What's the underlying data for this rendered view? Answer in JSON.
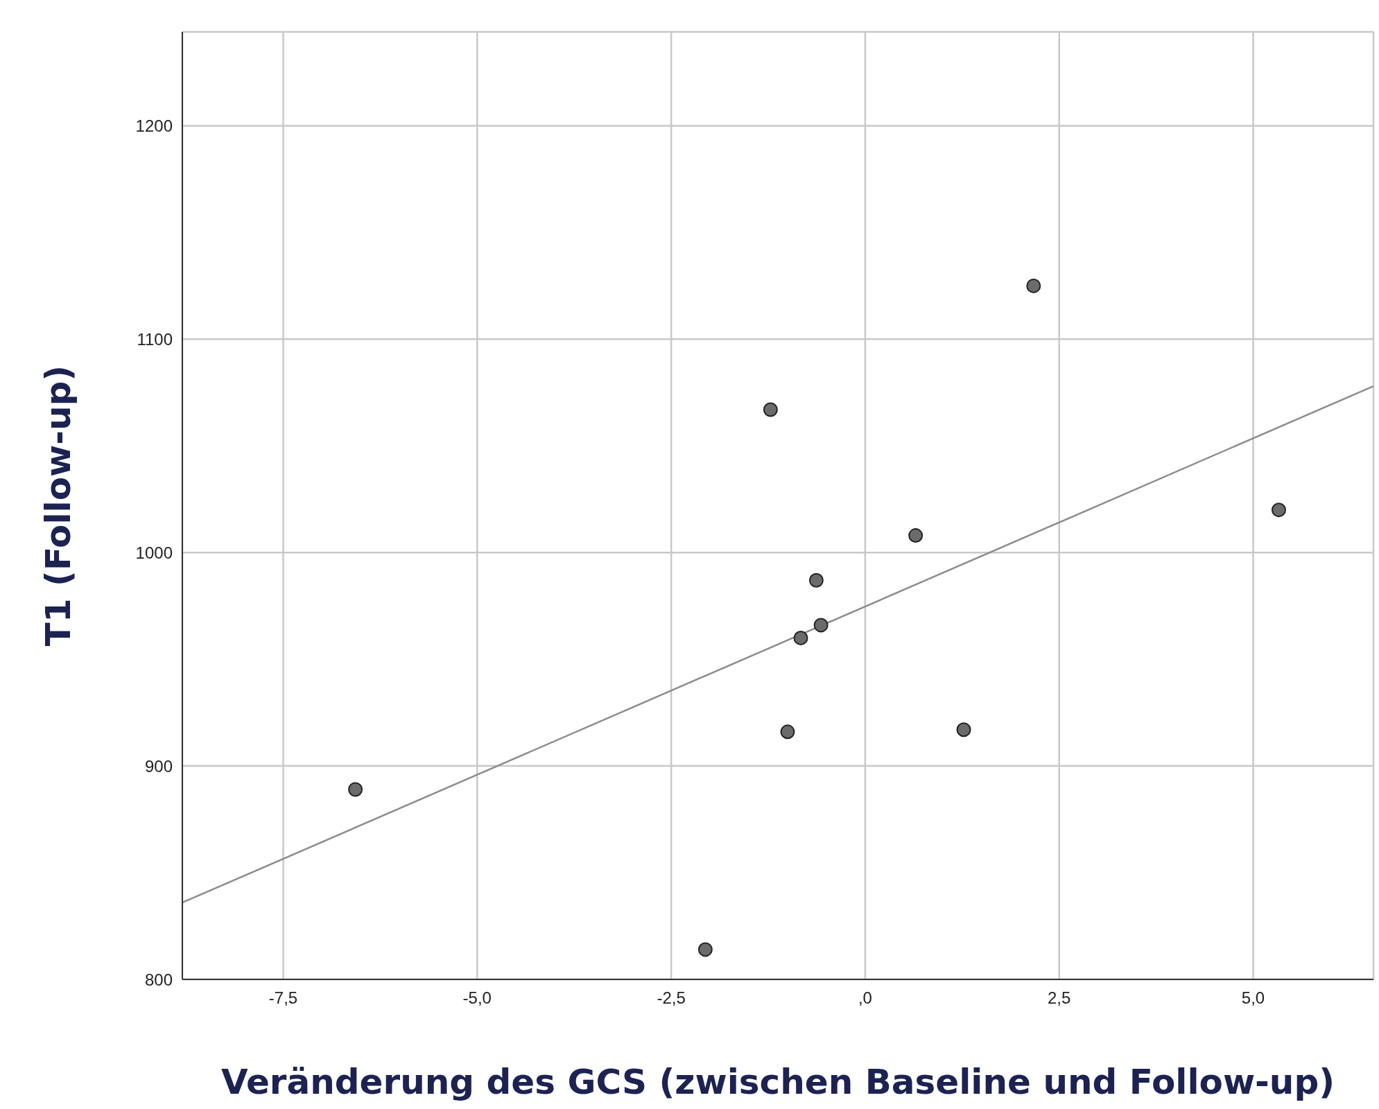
{
  "chart_data": {
    "type": "scatter",
    "xlabel": "Veränderung des GCS (zwischen Baseline und Follow-up)",
    "ylabel": "T1 (Follow-up)",
    "xlim": [
      -8.8,
      6.55
    ],
    "ylim": [
      800,
      1244
    ],
    "xticks": [
      {
        "value": -7.5,
        "label": "-7,5"
      },
      {
        "value": -5,
        "label": "-5,0"
      },
      {
        "value": -2.5,
        "label": "-2,5"
      },
      {
        "value": 0,
        "label": ",0"
      },
      {
        "value": 2.5,
        "label": "2,5"
      },
      {
        "value": 5,
        "label": "5,0"
      }
    ],
    "yticks": [
      800,
      900,
      1000,
      1100,
      1200
    ],
    "grid": true,
    "marker": "circle",
    "series": [
      {
        "color": "#6b6b6b",
        "x": [
          -6.57,
          -2.06,
          -1.22,
          -1.0,
          -0.83,
          -0.63,
          -0.57,
          0.65,
          1.27,
          2.17,
          5.33
        ],
        "values": [
          889,
          814,
          1067,
          916,
          960,
          987,
          966,
          1008,
          917,
          1125,
          1020
        ]
      },
      {
        "type": "line",
        "marker": "none",
        "color": "#8c8c8c",
        "x": [
          -8.8,
          6.55
        ],
        "values": [
          836,
          1078
        ]
      }
    ]
  }
}
